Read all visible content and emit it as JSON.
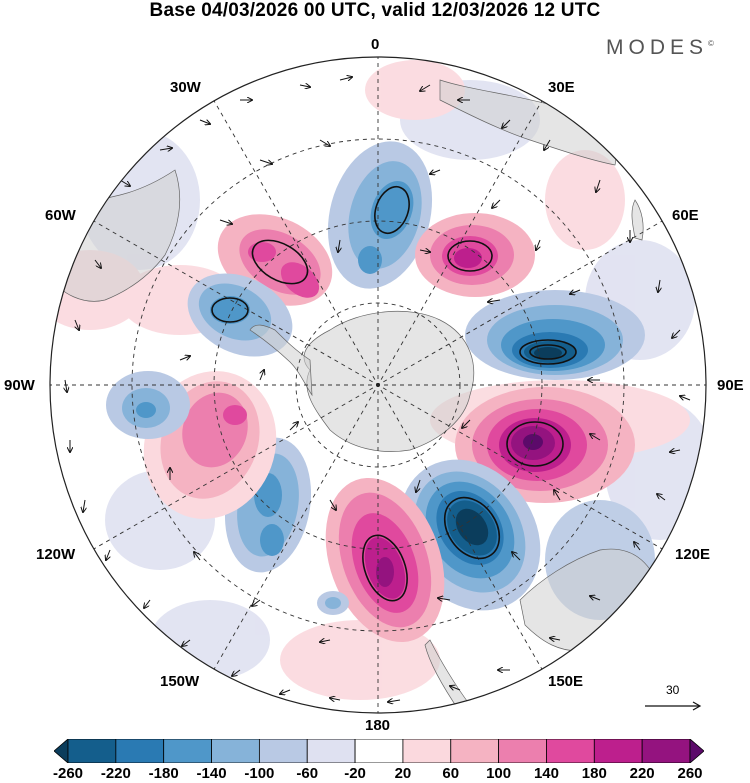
{
  "title": "Base 04/03/2026 00 UTC, valid 12/03/2026 12 UTC",
  "brand": "MODES",
  "brand_mark": "©",
  "longitude_labels": {
    "n": "0",
    "s": "180",
    "e90": "90E",
    "w90": "90W",
    "e30": "30E",
    "w30": "30W",
    "e60": "60E",
    "w60": "60W",
    "e120": "120E",
    "w120": "120W",
    "e150": "150E",
    "w150": "150W"
  },
  "reference_vector": {
    "label": "30"
  },
  "colorbar": {
    "labels": [
      "-260",
      "-220",
      "-180",
      "-140",
      "-100",
      "-60",
      "-20",
      "20",
      "60",
      "100",
      "140",
      "180",
      "220",
      "260"
    ],
    "colors": [
      "#0b3d5c",
      "#145e8c",
      "#2a7ab3",
      "#4f97c9",
      "#86b3d9",
      "#b9c9e4",
      "#dfe1f1",
      "#ffffff",
      "#fbd9de",
      "#f5b3c2",
      "#ec7fae",
      "#e0499e",
      "#bd1f8d",
      "#94137f",
      "#5c0a6a"
    ]
  },
  "map": {
    "anomalies": [
      {
        "name": "anomaly-negative-north",
        "sign": "neg",
        "level": 4
      },
      {
        "name": "anomaly-positive-ne",
        "sign": "pos",
        "level": 5
      },
      {
        "name": "anomaly-positive-nw",
        "sign": "pos",
        "level": 4
      },
      {
        "name": "anomaly-negative-east",
        "sign": "neg",
        "level": 7
      },
      {
        "name": "anomaly-positive-east",
        "sign": "pos",
        "level": 7
      },
      {
        "name": "anomaly-negative-se",
        "sign": "neg",
        "level": 7
      },
      {
        "name": "anomaly-positive-south",
        "sign": "pos",
        "level": 6
      },
      {
        "name": "anomaly-negative-sw",
        "sign": "neg",
        "level": 4
      },
      {
        "name": "anomaly-positive-west",
        "sign": "pos",
        "level": 4
      },
      {
        "name": "anomaly-negative-west",
        "sign": "neg",
        "level": 3
      },
      {
        "name": "anomaly-negative-wnw",
        "sign": "neg",
        "level": 4
      }
    ]
  }
}
